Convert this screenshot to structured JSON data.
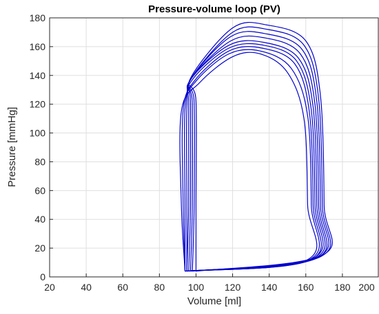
{
  "chart_data": {
    "type": "line",
    "title": "Pressure-volume loop (PV)",
    "xlabel": "Volume [ml]",
    "ylabel": "Pressure [mmHg]",
    "xlim": [
      20,
      200
    ],
    "ylim": [
      0,
      180
    ],
    "xticks": [
      20,
      40,
      60,
      80,
      100,
      120,
      140,
      160,
      180,
      200
    ],
    "yticks": [
      0,
      20,
      40,
      60,
      80,
      100,
      120,
      140,
      160,
      180
    ],
    "grid": true,
    "colors": {
      "series": "#0000cc",
      "axis": "#262626",
      "grid": "#dfdfdf"
    },
    "series": [
      {
        "x": [
          94,
          161,
          161,
          159,
          150,
          135,
          120,
          102,
          92,
          92,
          94
        ],
        "y": [
          4,
          12,
          50,
          110,
          142,
          155,
          153,
          135,
          115,
          50,
          4
        ]
      },
      {
        "x": [
          94,
          162,
          163,
          161,
          152,
          135,
          118,
          100,
          93,
          93,
          94
        ],
        "y": [
          4,
          12,
          50,
          112,
          145,
          157,
          155,
          136,
          116,
          50,
          4
        ]
      },
      {
        "x": [
          94,
          163,
          164,
          162,
          154,
          136,
          118,
          99,
          94,
          94,
          94
        ],
        "y": [
          4,
          12,
          50,
          114,
          148,
          159,
          157,
          136,
          117,
          50,
          4
        ]
      },
      {
        "x": [
          95,
          164,
          165,
          163,
          155,
          137,
          118,
          98,
          95,
          95,
          95
        ],
        "y": [
          4,
          13,
          50,
          116,
          150,
          161,
          159,
          137,
          118,
          50,
          4
        ]
      },
      {
        "x": [
          95,
          165,
          166,
          164,
          156,
          137,
          118,
          97,
          96,
          96,
          95
        ],
        "y": [
          4,
          13,
          50,
          118,
          152,
          163,
          161,
          137,
          119,
          50,
          4
        ]
      },
      {
        "x": [
          96,
          166,
          167,
          165,
          157,
          138,
          119,
          97,
          97,
          97,
          96
        ],
        "y": [
          4,
          13,
          50,
          120,
          155,
          166,
          164,
          137,
          120,
          50,
          4
        ]
      },
      {
        "x": [
          97,
          167,
          168,
          166,
          158,
          138,
          119,
          97,
          98,
          98,
          97
        ],
        "y": [
          4,
          14,
          50,
          122,
          158,
          169,
          167,
          137,
          120,
          50,
          4
        ]
      },
      {
        "x": [
          98,
          168,
          169,
          167,
          159,
          139,
          120,
          97,
          99,
          99,
          98
        ],
        "y": [
          4,
          14,
          50,
          124,
          161,
          172,
          170,
          137,
          121,
          50,
          4
        ]
      },
      {
        "x": [
          100,
          169,
          170,
          168,
          160,
          139,
          120,
          97,
          100,
          100,
          100
        ],
        "y": [
          4,
          15,
          50,
          126,
          164,
          175,
          173,
          138,
          122,
          50,
          4
        ]
      }
    ]
  }
}
